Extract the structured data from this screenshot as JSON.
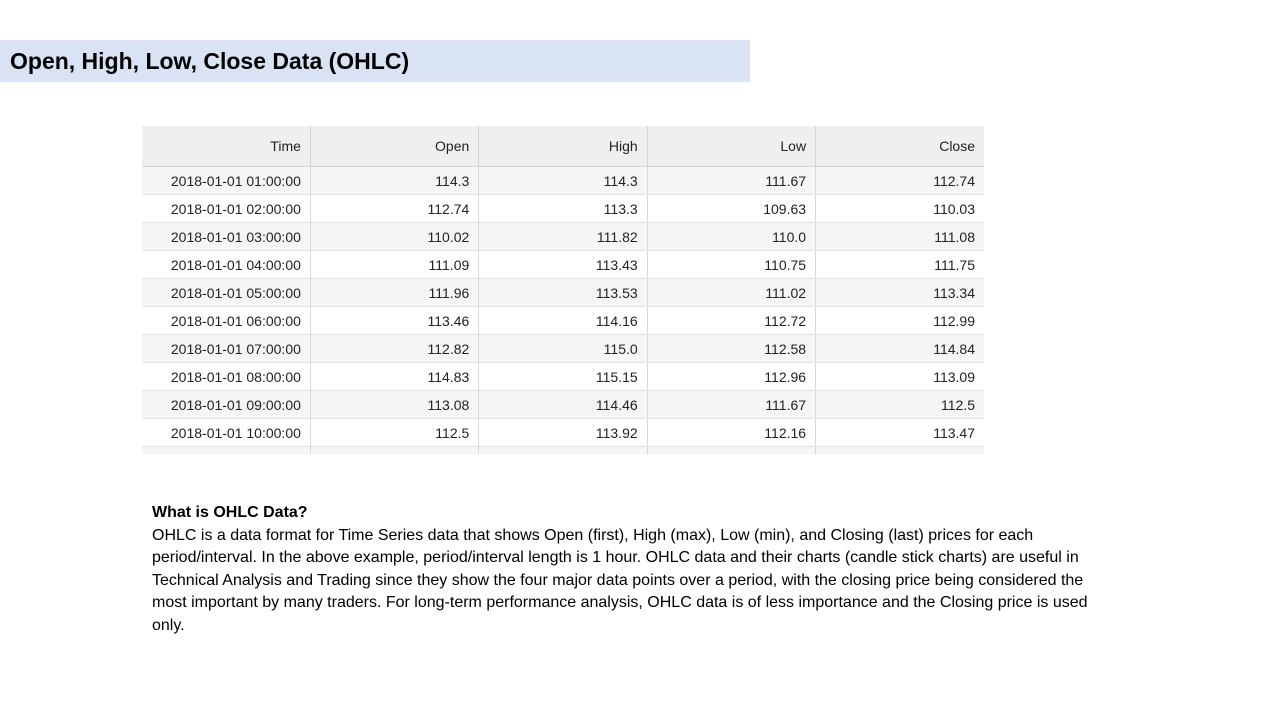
{
  "slide": {
    "title": "Open, High, Low, Close Data (OHLC)"
  },
  "table": {
    "headers": [
      "Time",
      "Open",
      "High",
      "Low",
      "Close"
    ],
    "rows": [
      [
        "2018-01-01 01:00:00",
        "114.3",
        "114.3",
        "111.67",
        "112.74"
      ],
      [
        "2018-01-01 02:00:00",
        "112.74",
        "113.3",
        "109.63",
        "110.03"
      ],
      [
        "2018-01-01 03:00:00",
        "110.02",
        "111.82",
        "110.0",
        "111.08"
      ],
      [
        "2018-01-01 04:00:00",
        "111.09",
        "113.43",
        "110.75",
        "111.75"
      ],
      [
        "2018-01-01 05:00:00",
        "111.96",
        "113.53",
        "111.02",
        "113.34"
      ],
      [
        "2018-01-01 06:00:00",
        "113.46",
        "114.16",
        "112.72",
        "112.99"
      ],
      [
        "2018-01-01 07:00:00",
        "112.82",
        "115.0",
        "112.58",
        "114.84"
      ],
      [
        "2018-01-01 08:00:00",
        "114.83",
        "115.15",
        "112.96",
        "113.09"
      ],
      [
        "2018-01-01 09:00:00",
        "113.08",
        "114.46",
        "111.67",
        "112.5"
      ],
      [
        "2018-01-01 10:00:00",
        "112.5",
        "113.92",
        "112.16",
        "113.47"
      ]
    ]
  },
  "explanation": {
    "heading": "What is OHLC Data?",
    "body": "OHLC is a data format for Time Series data that shows Open (first), High (max), Low (min), and Closing (last) prices for each period/interval. In the above example, period/interval length is 1 hour. OHLC data and their charts (candle stick charts) are useful in Technical Analysis and Trading since they show the four major data points over a period, with the closing price being considered the most important by many traders. For long-term performance analysis, OHLC data is of less importance and the Closing price is used only."
  }
}
